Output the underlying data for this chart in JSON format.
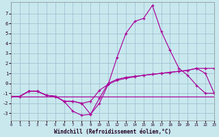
{
  "bg_color": "#c8e8ee",
  "line_color": "#aa0099",
  "grid_color": "#99bbcc",
  "xlim": [
    0,
    23
  ],
  "ylim": [
    -3.7,
    8.1
  ],
  "xticks": [
    0,
    1,
    2,
    3,
    4,
    5,
    6,
    7,
    8,
    9,
    10,
    11,
    12,
    13,
    14,
    15,
    16,
    17,
    18,
    19,
    20,
    21,
    22,
    23
  ],
  "yticks": [
    -3,
    -2,
    -1,
    0,
    1,
    2,
    3,
    4,
    5,
    6,
    7
  ],
  "xlabel": "Windchill (Refroidissement éolien,°C)",
  "line1_x": [
    0,
    1,
    2,
    3,
    4,
    5,
    6,
    7,
    8,
    9,
    10,
    11,
    12,
    13,
    14,
    15,
    16,
    17,
    18,
    19,
    20,
    21,
    22,
    23
  ],
  "line1_y": [
    -1.3,
    -1.3,
    -0.8,
    -0.8,
    -1.2,
    -1.3,
    -1.8,
    -1.8,
    -2.0,
    -3.1,
    -2.0,
    -0.1,
    2.6,
    5.0,
    6.2,
    6.5,
    7.8,
    5.2,
    3.3,
    1.5,
    0.8,
    -0.2,
    -1.0,
    -1.0
  ],
  "line2_x": [
    0,
    1,
    2,
    3,
    4,
    5,
    6,
    7,
    8,
    9,
    10,
    11,
    12,
    13,
    14,
    15,
    16,
    17,
    18,
    19,
    20,
    21,
    22,
    23
  ],
  "line2_y": [
    -1.3,
    -1.3,
    -0.8,
    -0.8,
    -1.2,
    -1.3,
    -1.8,
    -2.8,
    -3.2,
    -3.1,
    -1.5,
    0.0,
    0.4,
    0.6,
    0.7,
    0.8,
    0.9,
    1.0,
    1.1,
    1.2,
    1.3,
    1.5,
    1.5,
    1.5
  ],
  "line3_x": [
    0,
    1,
    2,
    3,
    4,
    5,
    6,
    7,
    8,
    9,
    10,
    11,
    12,
    13,
    14,
    15,
    16,
    17,
    18,
    19,
    20,
    21,
    22,
    23
  ],
  "line3_y": [
    -1.3,
    -1.3,
    -0.8,
    -0.8,
    -1.2,
    -1.3,
    -1.8,
    -1.8,
    -2.0,
    -1.8,
    -0.7,
    -0.1,
    0.3,
    0.5,
    0.65,
    0.8,
    0.9,
    1.0,
    1.1,
    1.2,
    1.3,
    1.5,
    1.0,
    -1.0
  ],
  "line4_x": [
    0,
    1,
    2,
    3,
    4,
    5,
    6,
    7,
    8,
    9,
    10,
    11,
    12,
    13,
    14,
    15,
    16,
    17,
    18,
    19,
    20,
    21,
    22,
    23
  ],
  "line4_y": [
    -1.3,
    -1.3,
    -1.3,
    -1.3,
    -1.3,
    -1.3,
    -1.3,
    -1.3,
    -1.3,
    -1.3,
    -1.3,
    -1.3,
    -1.3,
    -1.3,
    -1.3,
    -1.3,
    -1.3,
    -1.3,
    -1.3,
    -1.3,
    -1.3,
    -1.3,
    -1.3,
    -1.3
  ]
}
